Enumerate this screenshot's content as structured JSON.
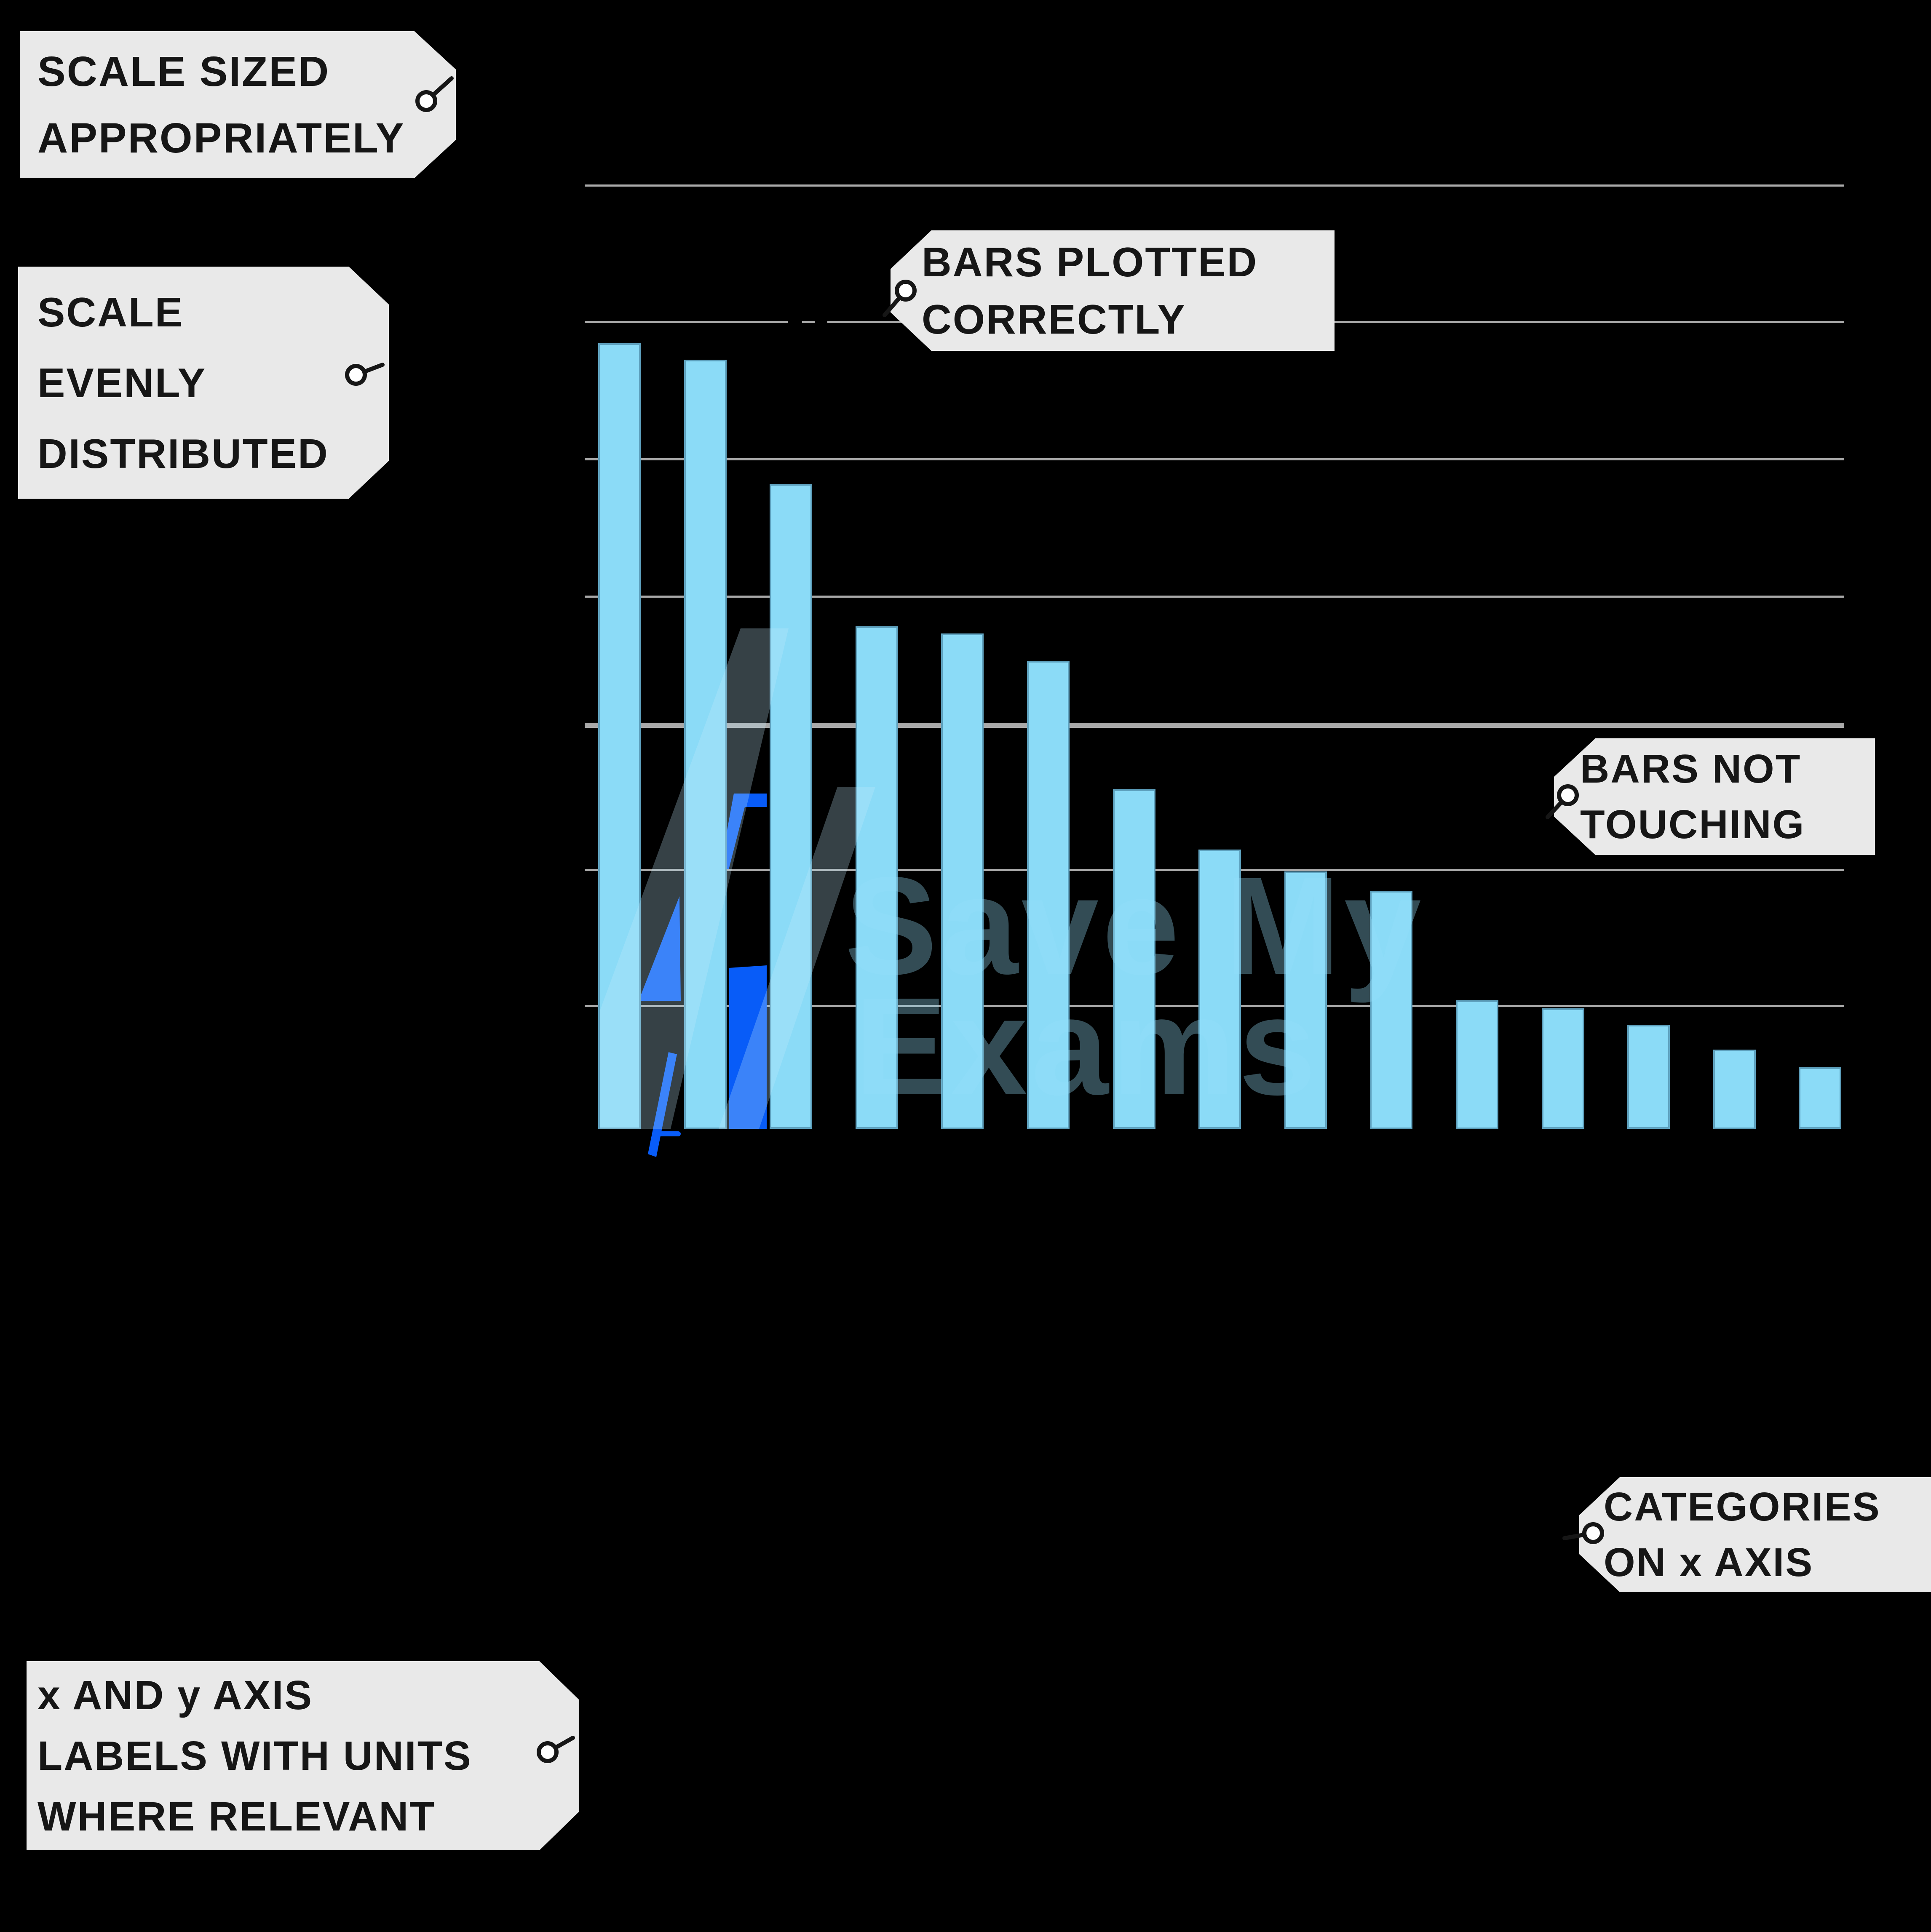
{
  "figure": {
    "background": "#000000",
    "watermark": {
      "line1": "Save My",
      "line2": "Exams"
    },
    "tags": [
      {
        "id": "scale-sized",
        "lines": [
          "SCALE SIZED",
          "APPROPRIATELY"
        ]
      },
      {
        "id": "scale-evenly",
        "lines": [
          "SCALE",
          "EVENLY",
          "DISTRIBUTED"
        ]
      },
      {
        "id": "bars-plotted",
        "lines": [
          "BARS PLOTTED",
          "CORRECTLY"
        ]
      },
      {
        "id": "bars-not-touching",
        "lines": [
          "BARS NOT",
          "TOUCHING"
        ]
      },
      {
        "id": "categories-x-axis",
        "lines": [
          "CATEGORIES",
          "ON x AXIS"
        ]
      },
      {
        "id": "axis-labels-units",
        "lines": [
          "x AND y AXIS",
          "LABELS WITH UNITS",
          "WHERE RELEVANT"
        ]
      }
    ]
  },
  "chart_data": {
    "type": "bar",
    "bar_count": 15,
    "values_gridline_units": [
      5.74,
      5.62,
      4.71,
      3.67,
      3.62,
      3.42,
      2.48,
      2.04,
      1.88,
      1.74,
      0.94,
      0.88,
      0.76,
      0.58,
      0.45
    ],
    "y_gridlines": [
      1,
      2,
      3,
      4,
      5,
      6,
      7
    ],
    "ylim": [
      0,
      7.4
    ],
    "grid": true,
    "legend": false,
    "axis_tick_labels_visible": false,
    "title": "",
    "xlabel": "",
    "ylabel": "",
    "bar_color": "#8BDBF7",
    "logo_blue": "#085CF8",
    "gridline_color": "#A9A9A9",
    "tag_background": "#E9E9E9",
    "tag_text_color": "#161616"
  }
}
